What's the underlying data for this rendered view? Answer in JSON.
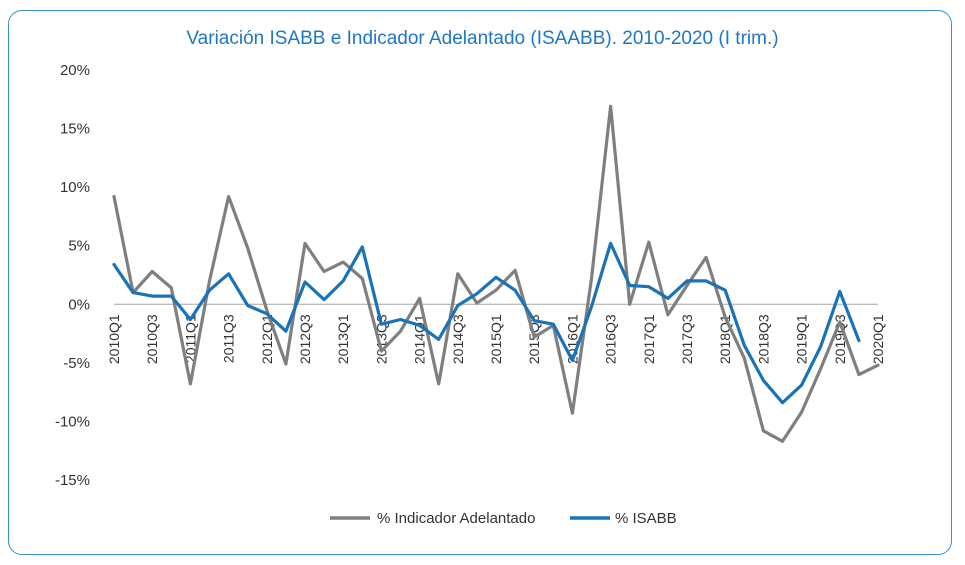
{
  "chart_data": {
    "type": "line",
    "title": "Variación ISABB e Indicador Adelantado (ISAABB). 2010-2020 (I trim.)",
    "xlabel": "",
    "ylabel": "",
    "ylim": [
      -15,
      20
    ],
    "yticks": [
      -15,
      -10,
      -5,
      0,
      5,
      10,
      15,
      20
    ],
    "ytick_labels": [
      "-15%",
      "-10%",
      "-5%",
      "0%",
      "5%",
      "10%",
      "15%",
      "20%"
    ],
    "x": [
      "2010Q1",
      "2010Q2",
      "2010Q3",
      "2010Q4",
      "2011Q1",
      "2011Q2",
      "2011Q3",
      "2011Q4",
      "2012Q1",
      "2012Q2",
      "2012Q3",
      "2012Q4",
      "2013Q1",
      "2013Q2",
      "2013Q3",
      "2013Q4",
      "2014Q1",
      "2014Q2",
      "2014Q3",
      "2014Q4",
      "2015Q1",
      "2015Q2",
      "2015Q3",
      "2015Q4",
      "2016Q1",
      "2016Q2",
      "2016Q3",
      "2016Q4",
      "2017Q1",
      "2017Q2",
      "2017Q3",
      "2017Q4",
      "2018Q1",
      "2018Q2",
      "2018Q3",
      "2018Q4",
      "2019Q1",
      "2019Q2",
      "2019Q3",
      "2019Q4",
      "2020Q1"
    ],
    "xtick_labels": [
      "2010Q1",
      "2010Q3",
      "2011Q1",
      "2011Q3",
      "2012Q1",
      "2012Q3",
      "2013Q1",
      "2013Q3",
      "2014Q1",
      "2014Q3",
      "2015Q1",
      "2015Q3",
      "2016Q1",
      "2016Q3",
      "2017Q1",
      "2017Q3",
      "2018Q1",
      "2018Q3",
      "2019Q1",
      "2019Q3",
      "2020Q1"
    ],
    "series": [
      {
        "name": "% Indicador Adelantado",
        "color": "#7f7f7f",
        "values": [
          9.2,
          1.0,
          2.8,
          1.4,
          -6.8,
          2.0,
          9.2,
          4.8,
          -0.5,
          -5.1,
          5.2,
          2.8,
          3.6,
          2.2,
          -4.0,
          -2.3,
          0.5,
          -6.8,
          2.6,
          0.1,
          1.2,
          2.9,
          -2.8,
          -1.8,
          -9.3,
          2.2,
          16.9,
          0.0,
          5.3,
          -0.9,
          1.6,
          4.0,
          -1.1,
          -4.6,
          -10.8,
          -11.7,
          -9.2,
          -5.5,
          -1.5,
          -6.0,
          -5.2
        ]
      },
      {
        "name": "% ISABB",
        "color": "#1a73b8",
        "values": [
          3.4,
          1.0,
          0.7,
          0.7,
          -1.3,
          1.2,
          2.6,
          -0.1,
          -0.8,
          -2.3,
          1.9,
          0.4,
          2.0,
          4.9,
          -1.7,
          -1.3,
          -1.8,
          -3.0,
          -0.1,
          0.9,
          2.3,
          1.2,
          -1.4,
          -1.7,
          -4.8,
          -0.2,
          5.2,
          1.6,
          1.5,
          0.5,
          2.0,
          2.0,
          1.2,
          -3.5,
          -6.5,
          -8.4,
          -6.9,
          -3.6,
          1.1,
          -3.1,
          null
        ]
      }
    ],
    "legend": "bottom",
    "grid": false
  }
}
